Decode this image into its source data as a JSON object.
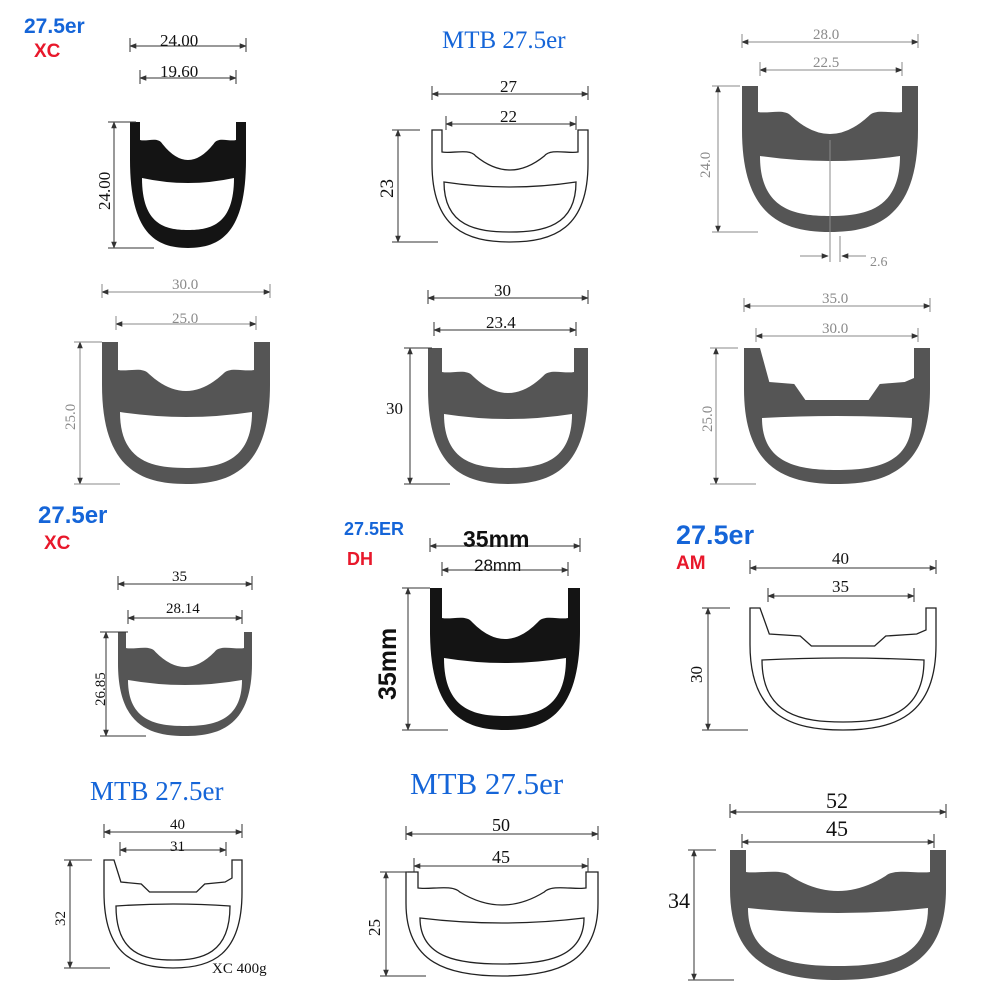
{
  "colors": {
    "title_blue": "#1565d8",
    "tag_red": "#e8182b",
    "rim_black": "#141414",
    "rim_gray": "#555555",
    "dim_gray": "#8a8a8a"
  },
  "rims": [
    {
      "title": "27.5er",
      "tag": "XC",
      "outer_width": "24.00",
      "inner_width": "19.60",
      "height": "24.00",
      "extra": ""
    },
    {
      "title": "MTB 27.5er",
      "tag": "",
      "outer_width": "27",
      "inner_width": "22",
      "height": "23",
      "extra": ""
    },
    {
      "title": "",
      "tag": "",
      "outer_width": "28.0",
      "inner_width": "22.5",
      "height": "24.0",
      "extra": "2.6"
    },
    {
      "title": "",
      "tag": "",
      "outer_width": "30.0",
      "inner_width": "25.0",
      "height": "25.0",
      "extra": ""
    },
    {
      "title": "",
      "tag": "",
      "outer_width": "30",
      "inner_width": "23.4",
      "height": "30",
      "extra": ""
    },
    {
      "title": "",
      "tag": "",
      "outer_width": "35.0",
      "inner_width": "30.0",
      "height": "25.0",
      "extra": ""
    },
    {
      "title": "27.5er",
      "tag": "XC",
      "outer_width": "35",
      "inner_width": "28.14",
      "height": "26.85",
      "extra": ""
    },
    {
      "title": "27.5ER",
      "tag": "DH",
      "outer_width": "35mm",
      "inner_width": "28mm",
      "height": "35mm",
      "extra": ""
    },
    {
      "title": "27.5er",
      "tag": "AM",
      "outer_width": "40",
      "inner_width": "35",
      "height": "30",
      "extra": ""
    },
    {
      "title": "MTB 27.5er",
      "tag": "",
      "outer_width": "40",
      "inner_width": "31",
      "height": "32",
      "extra": "XC 400g"
    },
    {
      "title": "MTB 27.5er",
      "tag": "",
      "outer_width": "50",
      "inner_width": "45",
      "height": "25",
      "extra": ""
    },
    {
      "title": "",
      "tag": "",
      "outer_width": "52",
      "inner_width": "45",
      "height": "34",
      "extra": ""
    }
  ]
}
